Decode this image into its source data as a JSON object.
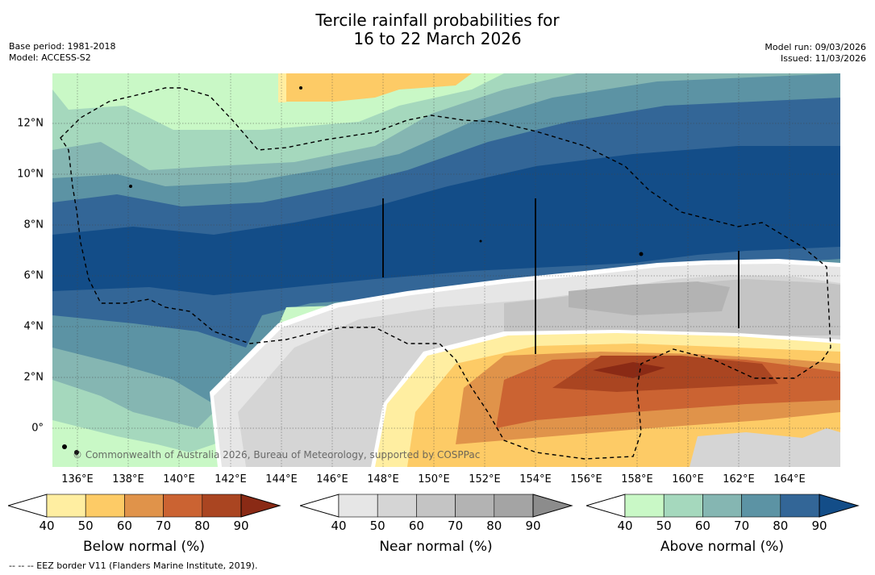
{
  "title_line1": "Tercile rainfall probabilities for",
  "title_line2": "16 to 22 March 2026",
  "base_period": "Base period: 1981-2018",
  "model": "Model: ACCESS-S2",
  "model_run": "Model run: 09/03/2026",
  "issued": "Issued: 11/03/2026",
  "copyright": "© Commonwealth of Australia 2026, Bureau of Meteorology, supported by COSPPac",
  "eez_note": "-- -- -- EEZ border V11 (Flanders Marine Institute, 2019).",
  "x_ticks": [
    "136°E",
    "138°E",
    "140°E",
    "142°E",
    "144°E",
    "146°E",
    "148°E",
    "150°E",
    "152°E",
    "154°E",
    "156°E",
    "158°E",
    "160°E",
    "162°E",
    "164°E"
  ],
  "y_ticks": [
    "12°N",
    "10°N",
    "8°N",
    "6°N",
    "4°N",
    "2°N",
    "0°"
  ],
  "colorbars": [
    {
      "label": "Below normal (%)",
      "ticks": [
        "40",
        "50",
        "60",
        "70",
        "80",
        "90"
      ],
      "colors": [
        "#ffeea1",
        "#fdcb66",
        "#e0934a",
        "#cb6332",
        "#aa4521",
        "#8a2a15"
      ]
    },
    {
      "label": "Near normal (%)",
      "ticks": [
        "40",
        "50",
        "60",
        "70",
        "80",
        "90"
      ],
      "colors": [
        "#e6e6e6",
        "#d5d5d5",
        "#c4c4c4",
        "#b3b3b3",
        "#a4a4a4",
        "#8c8c8c"
      ]
    },
    {
      "label": "Above normal (%)",
      "ticks": [
        "40",
        "50",
        "60",
        "70",
        "80",
        "90"
      ],
      "colors": [
        "#c9f8c6",
        "#a5d8bd",
        "#85b6b2",
        "#5c93a4",
        "#336697",
        "#134d88"
      ]
    }
  ],
  "colors": {
    "below40": "#ffeea1",
    "below50": "#fdcb66",
    "below60": "#e0934a",
    "below70": "#cb6332",
    "below80": "#aa4521",
    "near40": "#e6e6e6",
    "near50": "#d5d5d5",
    "near60": "#c4c4c4",
    "near70": "#b3b3b3",
    "above40": "#c9f8c6",
    "above50": "#a5d8bd",
    "above60": "#85b6b2",
    "above70": "#5c93a4",
    "above80": "#336697",
    "above90": "#134d88"
  }
}
